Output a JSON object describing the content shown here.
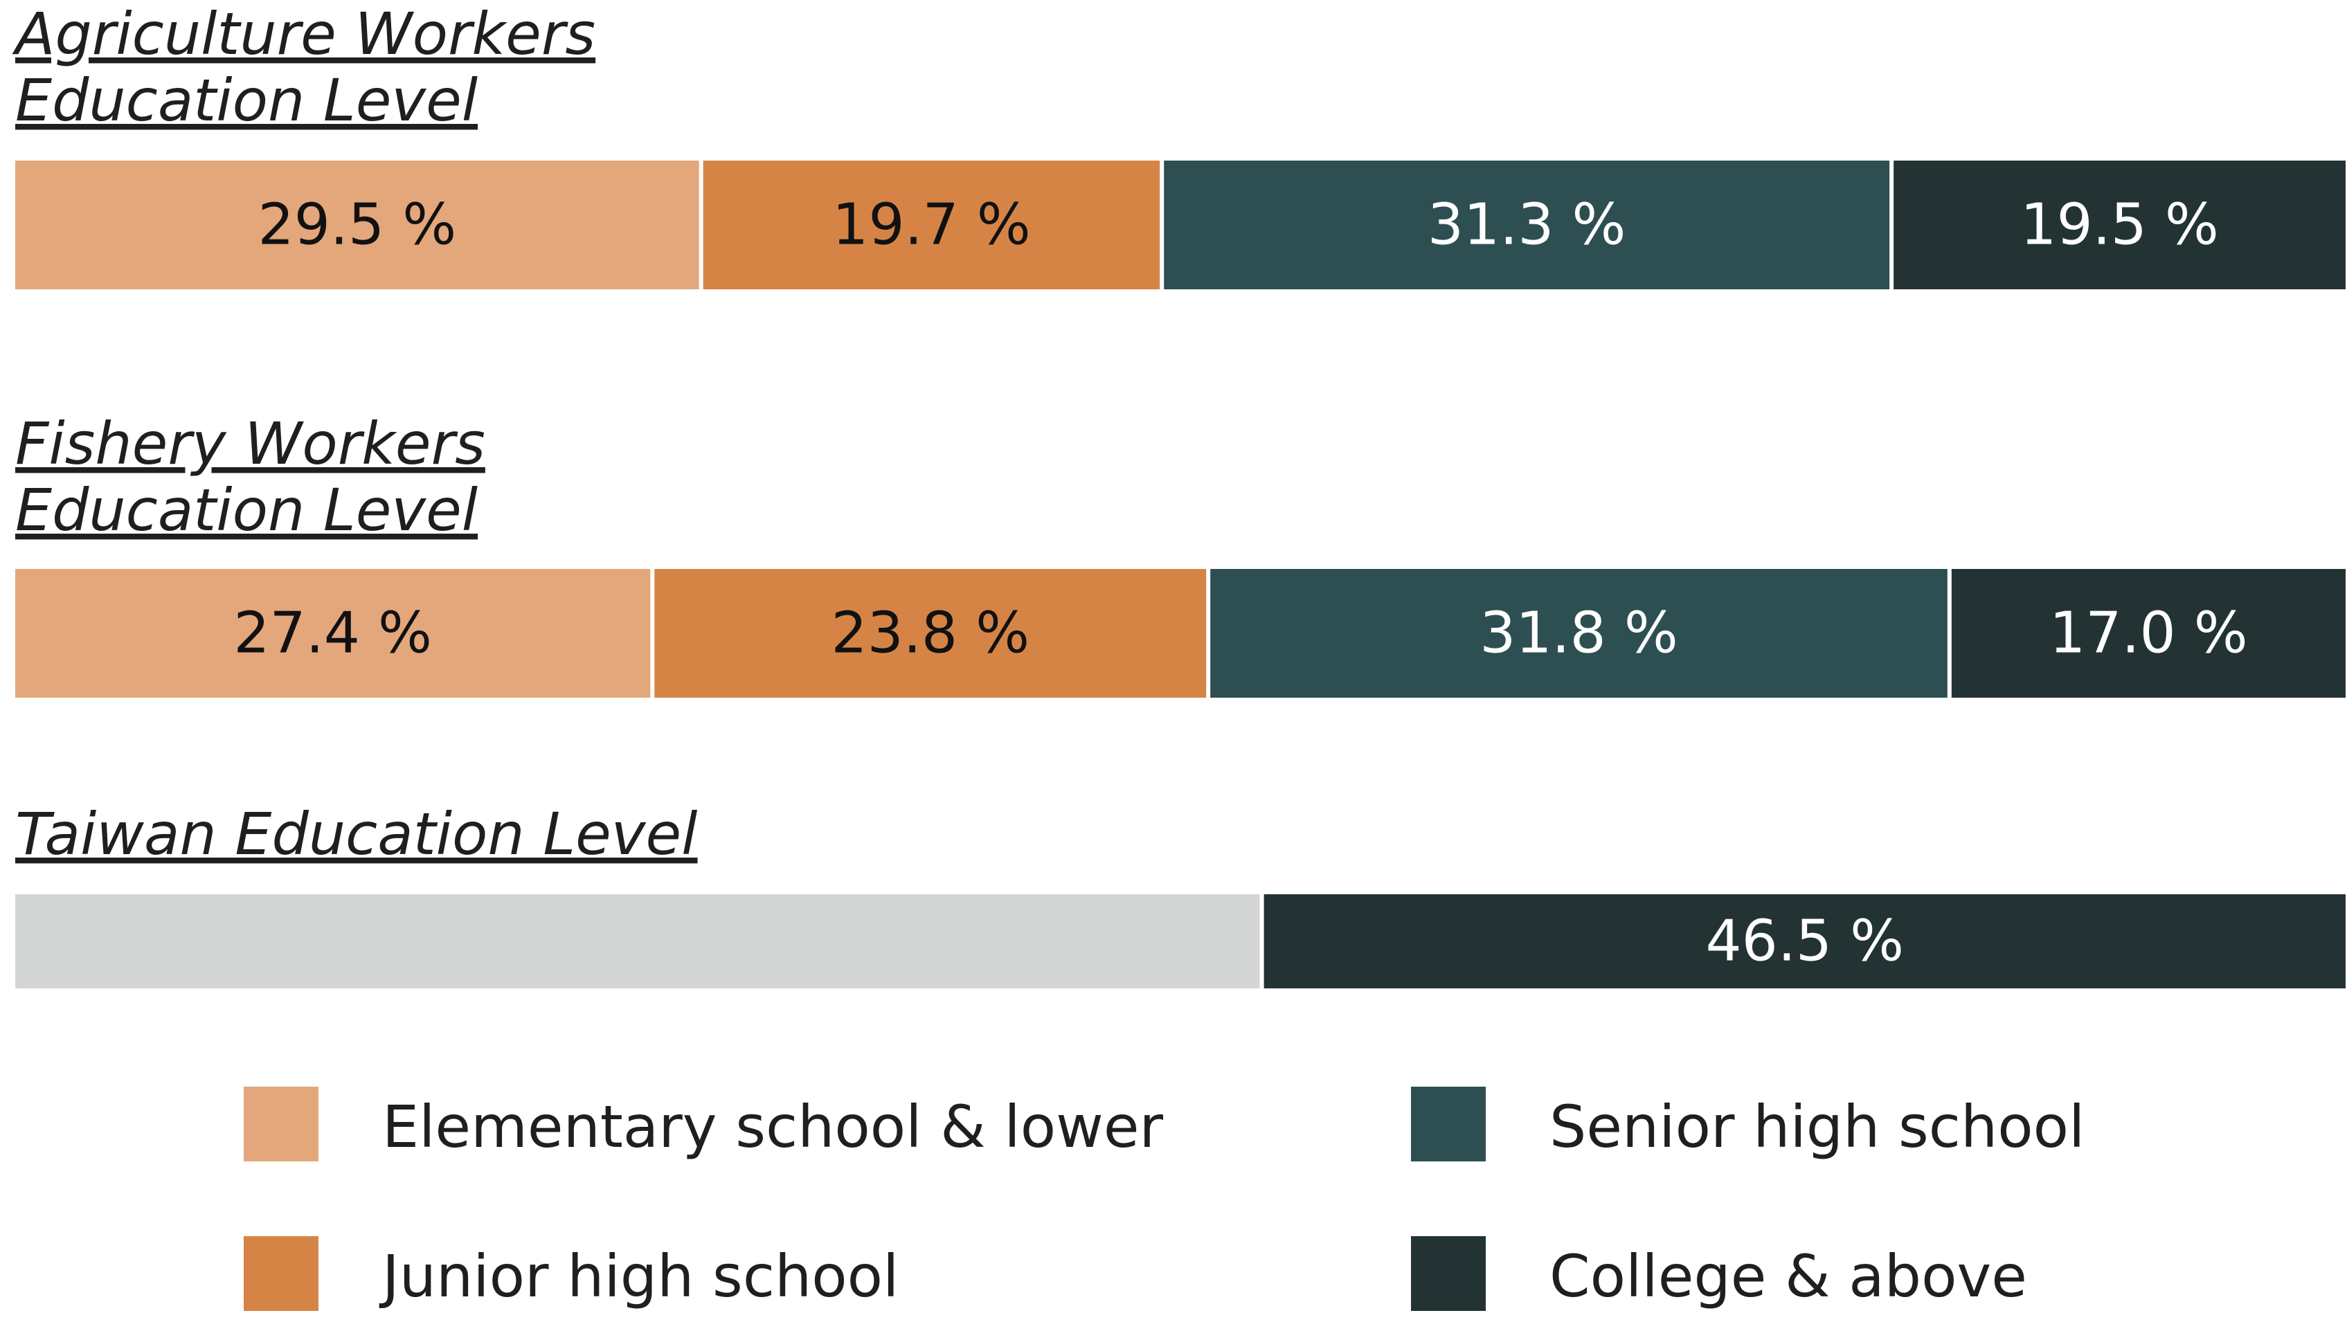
{
  "chart_data": {
    "type": "bar",
    "orientation": "horizontal",
    "stacked": true,
    "unit": "%",
    "categories": [
      "Elementary school & lower",
      "Junior high school",
      "Senior high school",
      "College & above"
    ],
    "colors": {
      "Elementary school & lower": "#e4a77b",
      "Junior high school": "#d68446",
      "Senior high school": "#2e4f52",
      "College & above": "#233334",
      "other": "#d4d6d5"
    },
    "bars": [
      {
        "title_lines": [
          "Agriculture Workers ",
          "Education Level"
        ],
        "segments": [
          {
            "category": "Elementary school & lower",
            "value": 29.5,
            "label": "29.5 %"
          },
          {
            "category": "Junior high school",
            "value": 19.7,
            "label": "19.7 %"
          },
          {
            "category": "Senior high school",
            "value": 31.3,
            "label": "31.3 %"
          },
          {
            "category": "College & above",
            "value": 19.5,
            "label": "19.5 %"
          }
        ]
      },
      {
        "title_lines": [
          "Fishery Workers",
          "Education Level"
        ],
        "segments": [
          {
            "category": "Elementary school & lower",
            "value": 27.4,
            "label": "27.4 %"
          },
          {
            "category": "Junior high school",
            "value": 23.8,
            "label": "23.8 %"
          },
          {
            "category": "Senior high school",
            "value": 31.8,
            "label": "31.8 %"
          },
          {
            "category": "College & above",
            "value": 17.0,
            "label": "17.0 %"
          }
        ]
      },
      {
        "title_lines": [
          "Taiwan Education Level"
        ],
        "segments": [
          {
            "category": "other",
            "value": 53.5,
            "label": ""
          },
          {
            "category": "College & above",
            "value": 46.5,
            "label": "46.5 %"
          }
        ]
      }
    ],
    "legend": [
      "Elementary school & lower",
      "Senior high school",
      "Junior high school",
      "College & above"
    ]
  }
}
